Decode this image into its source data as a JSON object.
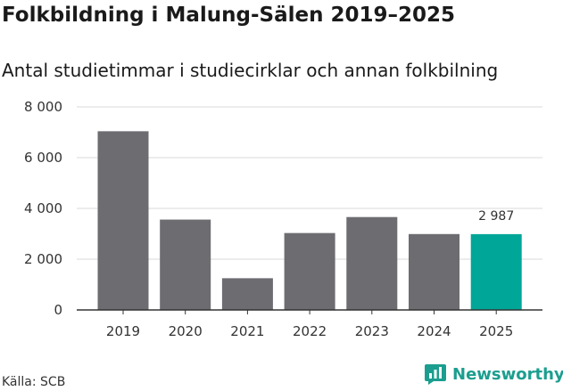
{
  "header": {
    "title": "Folkbildning i Malung-Sälen 2019–2025",
    "subtitle": "Antal studietimmar i studiecirklar och annan folkbilning"
  },
  "footer": {
    "source": "Källa: SCB",
    "brand": "Newsworthy",
    "brand_icon": "newsworthy-logo-icon"
  },
  "colors": {
    "bar": "#6d6c71",
    "highlight": "#00a698",
    "grid": "#d9d9d9",
    "axis": "#333333",
    "brand": "#1b9e8f"
  },
  "chart_data": {
    "type": "bar",
    "categories": [
      "2019",
      "2020",
      "2021",
      "2022",
      "2023",
      "2024",
      "2025"
    ],
    "values": [
      7040,
      3560,
      1250,
      3030,
      3660,
      2990,
      2987
    ],
    "highlight_index": 6,
    "annotations": [
      {
        "index": 6,
        "text": "2 987"
      }
    ],
    "y_ticks": [
      0,
      2000,
      4000,
      6000,
      8000
    ],
    "y_tick_labels": [
      "0",
      "2 000",
      "4 000",
      "6 000",
      "8 000"
    ],
    "ylim": [
      0,
      8000
    ],
    "grid": true,
    "xlabel": "",
    "ylabel": ""
  }
}
